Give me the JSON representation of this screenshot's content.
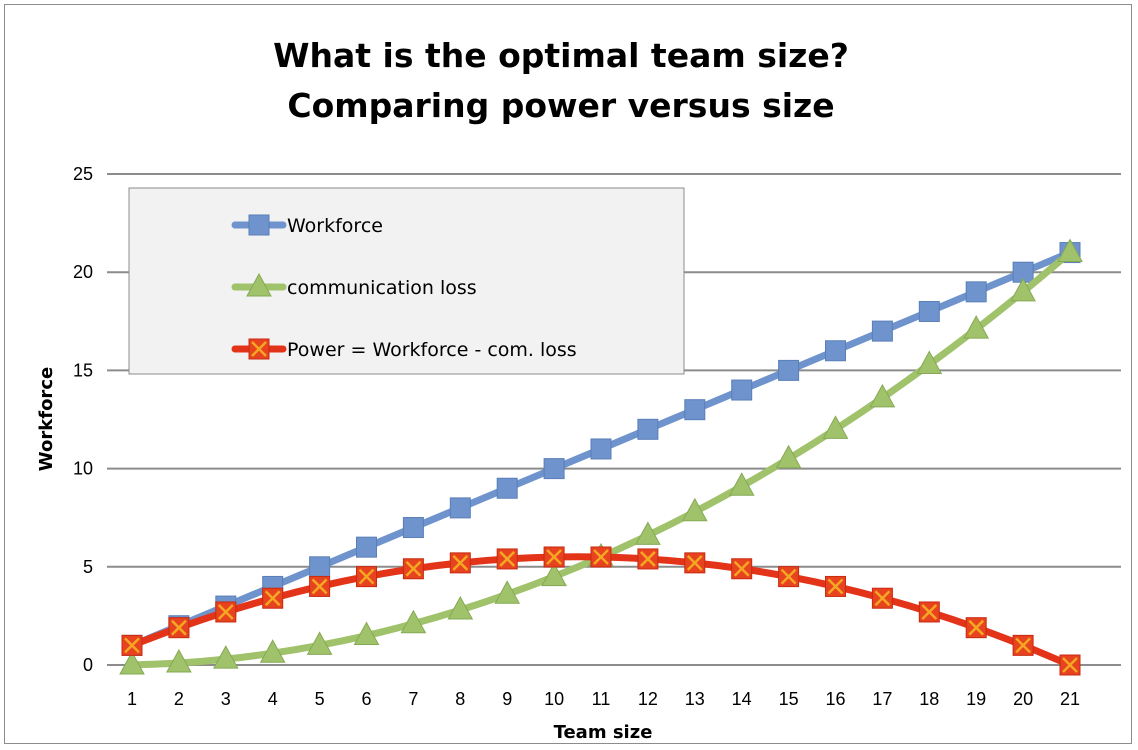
{
  "chart_data": {
    "type": "line",
    "title_lines": [
      "What is the optimal team size?",
      "Comparing power versus size"
    ],
    "xlabel": "Team size",
    "ylabel": "Workforce",
    "x": [
      1,
      2,
      3,
      4,
      5,
      6,
      7,
      8,
      9,
      10,
      11,
      12,
      13,
      14,
      15,
      16,
      17,
      18,
      19,
      20,
      21
    ],
    "xlim": [
      1,
      21
    ],
    "ylim": [
      0,
      25
    ],
    "y_ticks": [
      0,
      5,
      10,
      15,
      20,
      25
    ],
    "grid": "horizontal",
    "legend_position": "top-left",
    "series": [
      {
        "name": "Workforce",
        "color": "#6f93cc",
        "marker": "square",
        "values": [
          1,
          2,
          3,
          4,
          5,
          6,
          7,
          8,
          9,
          10,
          11,
          12,
          13,
          14,
          15,
          16,
          17,
          18,
          19,
          20,
          21
        ]
      },
      {
        "name": "communication loss",
        "color": "#9fc26a",
        "marker": "triangle",
        "values": [
          0,
          0.1,
          0.3,
          0.6,
          1.0,
          1.5,
          2.1,
          2.8,
          3.6,
          4.5,
          5.5,
          6.6,
          7.8,
          9.1,
          10.5,
          12.0,
          13.6,
          15.3,
          17.1,
          19.0,
          21.0
        ]
      },
      {
        "name": "Power = Workforce - com. loss",
        "color": "#e33419",
        "marker": "x-square",
        "values": [
          1.0,
          1.9,
          2.7,
          3.4,
          4.0,
          4.5,
          4.9,
          5.2,
          5.4,
          5.5,
          5.5,
          5.4,
          5.2,
          4.9,
          4.5,
          4.0,
          3.4,
          2.7,
          1.9,
          1.0,
          0
        ]
      }
    ]
  }
}
